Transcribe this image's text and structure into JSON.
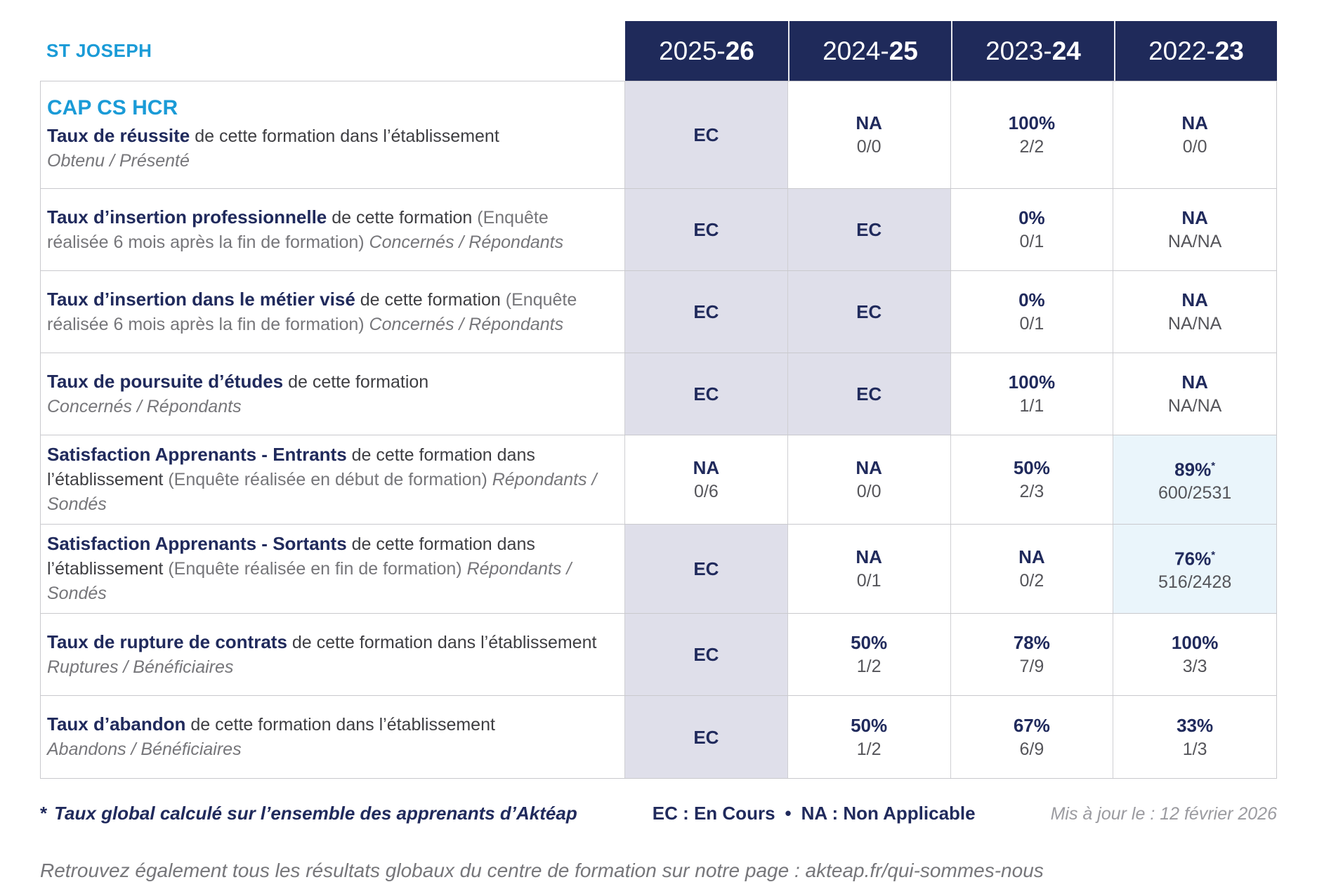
{
  "colors": {
    "accent_cyan": "#1a9bd7",
    "navy": "#202a5c",
    "header_bg": "#1f2a5a",
    "ec_cell_bg": "#dfdfea",
    "highlight_cell_bg": "#eaf5fb",
    "text_gray": "#76767a"
  },
  "header": {
    "establishment": "ST JOSEPH",
    "years": [
      {
        "prefix": "2025-",
        "suffix": "26"
      },
      {
        "prefix": "2024-",
        "suffix": "25"
      },
      {
        "prefix": "2023-",
        "suffix": "24"
      },
      {
        "prefix": "2022-",
        "suffix": "23"
      }
    ]
  },
  "formation_title": "CAP CS HCR",
  "rows": [
    {
      "segments": [
        {
          "t": "title",
          "text": "Taux de réussite"
        },
        {
          "t": "mid",
          "text": " de cette formation dans l’établissement"
        },
        {
          "t": "br"
        },
        {
          "t": "sub",
          "text": "Obtenu / Présenté"
        }
      ],
      "cells": [
        {
          "main": "EC",
          "bg": "ec"
        },
        {
          "main": "NA",
          "sub": "0/0"
        },
        {
          "main": "100%",
          "sub": "2/2"
        },
        {
          "main": "NA",
          "sub": "0/0"
        }
      ]
    },
    {
      "segments": [
        {
          "t": "title",
          "text": "Taux d’insertion professionnelle"
        },
        {
          "t": "mid",
          "text": " de cette formation "
        },
        {
          "t": "paren",
          "text": "(Enquête réalisée 6 mois après la fin de formation) "
        },
        {
          "t": "sub",
          "text": "Concernés / Répondants"
        }
      ],
      "cells": [
        {
          "main": "EC",
          "bg": "ec"
        },
        {
          "main": "EC",
          "bg": "ec"
        },
        {
          "main": "0%",
          "sub": "0/1"
        },
        {
          "main": "NA",
          "sub": "NA/NA"
        }
      ]
    },
    {
      "segments": [
        {
          "t": "title",
          "text": "Taux d’insertion dans le métier visé"
        },
        {
          "t": "mid",
          "text": " de cette formation "
        },
        {
          "t": "paren",
          "text": "(Enquête réalisée 6 mois après la fin de formation) "
        },
        {
          "t": "sub",
          "text": "Concernés / Répondants"
        }
      ],
      "cells": [
        {
          "main": "EC",
          "bg": "ec"
        },
        {
          "main": "EC",
          "bg": "ec"
        },
        {
          "main": "0%",
          "sub": "0/1"
        },
        {
          "main": "NA",
          "sub": "NA/NA"
        }
      ]
    },
    {
      "segments": [
        {
          "t": "title",
          "text": "Taux de poursuite d’études"
        },
        {
          "t": "mid",
          "text": " de cette formation"
        },
        {
          "t": "br"
        },
        {
          "t": "sub",
          "text": "Concernés / Répondants"
        }
      ],
      "cells": [
        {
          "main": "EC",
          "bg": "ec"
        },
        {
          "main": "EC",
          "bg": "ec"
        },
        {
          "main": "100%",
          "sub": "1/1"
        },
        {
          "main": "NA",
          "sub": "NA/NA"
        }
      ]
    },
    {
      "segments": [
        {
          "t": "title",
          "text": "Satisfaction Apprenants - Entrants"
        },
        {
          "t": "mid",
          "text": " de cette formation dans l’établissement "
        },
        {
          "t": "paren",
          "text": "(Enquête réalisée en début de formation) "
        },
        {
          "t": "sub",
          "text": "Répondants / Sondés"
        }
      ],
      "cells": [
        {
          "main": "NA",
          "sub": "0/6"
        },
        {
          "main": "NA",
          "sub": "0/0"
        },
        {
          "main": "50%",
          "sub": "2/3"
        },
        {
          "main": "89%",
          "note_marker": "*",
          "sub": "600/2531",
          "bg": "hl"
        }
      ]
    },
    {
      "segments": [
        {
          "t": "title",
          "text": "Satisfaction Apprenants - Sortants"
        },
        {
          "t": "mid",
          "text": " de cette formation dans l’établissement "
        },
        {
          "t": "paren",
          "text": "(Enquête réalisée en fin de formation) "
        },
        {
          "t": "sub",
          "text": "Répondants / Sondés"
        }
      ],
      "cells": [
        {
          "main": "EC",
          "bg": "ec"
        },
        {
          "main": "NA",
          "sub": "0/1"
        },
        {
          "main": "NA",
          "sub": "0/2"
        },
        {
          "main": "76%",
          "note_marker": "*",
          "sub": "516/2428",
          "bg": "hl"
        }
      ]
    },
    {
      "segments": [
        {
          "t": "title",
          "text": "Taux de rupture de contrats"
        },
        {
          "t": "mid",
          "text": " de cette formation dans l’établissement"
        },
        {
          "t": "br"
        },
        {
          "t": "sub",
          "text": "Ruptures / Bénéficiaires"
        }
      ],
      "cells": [
        {
          "main": "EC",
          "bg": "ec"
        },
        {
          "main": "50%",
          "sub": "1/2"
        },
        {
          "main": "78%",
          "sub": "7/9"
        },
        {
          "main": "100%",
          "sub": "3/3"
        }
      ]
    },
    {
      "segments": [
        {
          "t": "title",
          "text": "Taux d’abandon"
        },
        {
          "t": "mid",
          "text": " de cette formation dans l’établissement"
        },
        {
          "t": "br"
        },
        {
          "t": "sub",
          "text": "Abandons / Bénéficiaires"
        }
      ],
      "cells": [
        {
          "main": "EC",
          "bg": "ec"
        },
        {
          "main": "50%",
          "sub": "1/2"
        },
        {
          "main": "67%",
          "sub": "6/9"
        },
        {
          "main": "33%",
          "sub": "1/3"
        }
      ]
    }
  ],
  "footer": {
    "note_marker": "*",
    "note_text": "Taux global calculé sur l’ensemble des apprenants d’Aktéap",
    "legend_ec": "EC : En Cours",
    "legend_sep": "•",
    "legend_na": "NA : Non Applicable",
    "updated": "Mis à jour le : 12 février 2026"
  },
  "bottom_note": {
    "text": "Retrouvez également tous les résultats globaux du centre de formation sur notre page : ",
    "url": "akteap.fr/qui-sommes-nous"
  }
}
